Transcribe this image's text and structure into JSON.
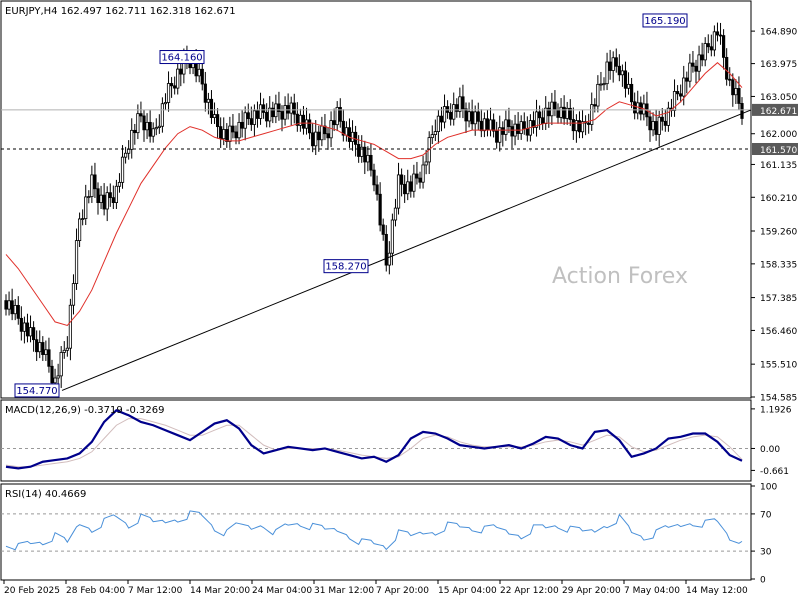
{
  "chart_data": [
    {
      "type": "candlestick",
      "title": "EURJPY,H4  162.497 162.711 162.318 162.671",
      "watermark": "Action Forex",
      "ylim": [
        154.585,
        165.71
      ],
      "y_ticks": [
        "164.890",
        "163.975",
        "163.050",
        "162.000",
        "161.135",
        "160.210",
        "159.260",
        "158.335",
        "157.385",
        "156.460",
        "155.510",
        "154.585"
      ],
      "y_tick_values": [
        164.89,
        163.975,
        163.05,
        162.0,
        161.135,
        160.21,
        159.26,
        158.335,
        157.385,
        156.46,
        155.51,
        154.585
      ],
      "current_price": {
        "label": "162.671",
        "value": 162.671
      },
      "support_line": {
        "label": "161.570",
        "value": 161.57
      },
      "trendline": {
        "from_x": "20 Feb 2025",
        "from_y": 154.77,
        "to_x": "15 May 2025",
        "to_y": 162.55
      },
      "annotations": [
        {
          "label": "154.770",
          "x": "26 Feb 2025",
          "value": 154.77
        },
        {
          "label": "164.160",
          "x": "17 Mar 2025",
          "value": 164.16
        },
        {
          "label": "158.270",
          "x": "4 Apr 2025",
          "value": 158.27
        },
        {
          "label": "165.190",
          "x": "12 May 2025",
          "value": 165.19
        }
      ],
      "series": [
        {
          "name": "Close (H4, approx.)",
          "x": [
            "20 Feb 2025",
            "21 Feb 2025",
            "24 Feb 2025",
            "25 Feb 2025",
            "26 Feb 2025",
            "27 Feb 2025",
            "28 Feb 2025",
            "3 Mar 2025",
            "4 Mar 2025",
            "5 Mar 2025",
            "6 Mar 2025",
            "7 Mar 2025",
            "10 Mar 2025",
            "11 Mar 2025",
            "12 Mar 2025",
            "13 Mar 2025",
            "14 Mar 2025",
            "17 Mar 2025",
            "18 Mar 2025",
            "19 Mar 2025",
            "20 Mar 2025",
            "21 Mar 2025",
            "24 Mar 2025",
            "25 Mar 2025",
            "26 Mar 2025",
            "27 Mar 2025",
            "28 Mar 2025",
            "31 Mar 2025",
            "1 Apr 2025",
            "2 Apr 2025",
            "3 Apr 2025",
            "4 Apr 2025",
            "7 Apr 2025",
            "8 Apr 2025",
            "9 Apr 2025",
            "10 Apr 2025",
            "11 Apr 2025",
            "14 Apr 2025",
            "15 Apr 2025",
            "16 Apr 2025",
            "17 Apr 2025",
            "18 Apr 2025",
            "21 Apr 2025",
            "22 Apr 2025",
            "23 Apr 2025",
            "24 Apr 2025",
            "25 Apr 2025",
            "28 Apr 2025",
            "29 Apr 2025",
            "30 Apr 2025",
            "1 May 2025",
            "2 May 2025",
            "5 May 2025",
            "6 May 2025",
            "7 May 2025",
            "8 May 2025",
            "9 May 2025",
            "12 May 2025",
            "13 May 2025",
            "14 May 2025",
            "15 May 2025"
          ],
          "values": [
            157.3,
            156.8,
            156.3,
            155.9,
            155.0,
            156.2,
            159.6,
            160.6,
            160.0,
            160.4,
            161.8,
            162.5,
            161.9,
            163.0,
            163.7,
            164.1,
            163.4,
            162.3,
            161.9,
            162.2,
            162.5,
            162.6,
            162.6,
            162.7,
            162.4,
            161.9,
            162.0,
            162.5,
            161.9,
            161.5,
            160.8,
            158.3,
            160.6,
            160.5,
            161.0,
            162.3,
            162.6,
            162.8,
            162.4,
            162.3,
            162.0,
            162.2,
            162.1,
            162.3,
            162.6,
            162.7,
            162.4,
            162.1,
            162.9,
            163.9,
            163.9,
            162.9,
            162.6,
            162.1,
            162.6,
            163.3,
            163.9,
            164.3,
            164.9,
            163.4,
            162.67
          ]
        },
        {
          "name": "MA",
          "values": [
            158.6,
            158.2,
            157.7,
            157.2,
            156.7,
            156.6,
            157.0,
            157.6,
            158.4,
            159.2,
            159.9,
            160.6,
            161.1,
            161.6,
            162.0,
            162.2,
            162.1,
            161.9,
            161.8,
            161.8,
            161.9,
            162.0,
            162.1,
            162.2,
            162.3,
            162.3,
            162.2,
            162.1,
            161.9,
            161.8,
            161.7,
            161.5,
            161.3,
            161.3,
            161.4,
            161.7,
            161.9,
            162.0,
            162.1,
            162.1,
            162.1,
            162.1,
            162.1,
            162.2,
            162.3,
            162.3,
            162.3,
            162.3,
            162.4,
            162.7,
            162.9,
            162.8,
            162.7,
            162.5,
            162.6,
            162.9,
            163.3,
            163.7,
            164.0,
            163.7,
            163.3
          ]
        }
      ]
    },
    {
      "type": "line",
      "title": "MACD(12,26,9) -0.3719 -0.3269",
      "ylim": [
        -0.95,
        1.4
      ],
      "y_ticks": [
        "1.1926",
        "0.00",
        "-0.661"
      ],
      "y_tick_values": [
        1.1926,
        0.0,
        -0.661
      ],
      "series": [
        {
          "name": "MACD",
          "values": [
            -0.55,
            -0.6,
            -0.55,
            -0.4,
            -0.35,
            -0.3,
            -0.15,
            0.2,
            0.8,
            1.15,
            1.0,
            0.8,
            0.7,
            0.55,
            0.4,
            0.25,
            0.5,
            0.75,
            0.85,
            0.6,
            0.1,
            -0.15,
            -0.05,
            0.05,
            0.0,
            -0.05,
            0.0,
            -0.1,
            -0.2,
            -0.3,
            -0.25,
            -0.4,
            -0.2,
            0.3,
            0.5,
            0.45,
            0.3,
            0.1,
            0.05,
            0.0,
            0.05,
            0.1,
            0.0,
            0.15,
            0.35,
            0.3,
            0.1,
            0.0,
            0.5,
            0.55,
            0.25,
            -0.25,
            -0.15,
            0.0,
            0.3,
            0.35,
            0.45,
            0.45,
            0.2,
            -0.2,
            -0.37
          ]
        },
        {
          "name": "Signal",
          "values": [
            -0.5,
            -0.55,
            -0.55,
            -0.5,
            -0.45,
            -0.4,
            -0.3,
            -0.1,
            0.3,
            0.7,
            0.9,
            0.9,
            0.8,
            0.7,
            0.55,
            0.4,
            0.4,
            0.55,
            0.7,
            0.7,
            0.4,
            0.1,
            -0.05,
            0.0,
            0.0,
            0.0,
            0.0,
            -0.05,
            -0.12,
            -0.2,
            -0.25,
            -0.3,
            -0.25,
            0.0,
            0.3,
            0.4,
            0.35,
            0.2,
            0.1,
            0.05,
            0.05,
            0.05,
            0.05,
            0.1,
            0.2,
            0.25,
            0.2,
            0.1,
            0.25,
            0.4,
            0.35,
            0.05,
            -0.1,
            -0.05,
            0.1,
            0.25,
            0.35,
            0.4,
            0.35,
            0.05,
            -0.33
          ]
        }
      ]
    },
    {
      "type": "line",
      "title": "RSI(14) 40.4669",
      "ylim": [
        0,
        100
      ],
      "y_ticks": [
        "100",
        "70",
        "30",
        "0"
      ],
      "y_tick_values": [
        100,
        70,
        30,
        0
      ],
      "series": [
        {
          "name": "RSI",
          "values": [
            40,
            35,
            38,
            40,
            45,
            38,
            60,
            55,
            62,
            67,
            58,
            65,
            60,
            62,
            66,
            70,
            68,
            55,
            48,
            58,
            55,
            60,
            50,
            58,
            60,
            55,
            52,
            53,
            48,
            40,
            38,
            35,
            48,
            45,
            50,
            52,
            58,
            56,
            55,
            52,
            54,
            50,
            48,
            55,
            55,
            58,
            52,
            50,
            52,
            60,
            66,
            50,
            45,
            48,
            54,
            58,
            62,
            60,
            62,
            45,
            40.47
          ]
        }
      ]
    }
  ],
  "x_axis": {
    "labels": [
      "20 Feb 2025",
      "28 Feb 04:00",
      "7 Mar 12:00",
      "14 Mar 20:00",
      "24 Mar 04:00",
      "31 Mar 12:00",
      "7 Apr 20:00",
      "15 Apr 04:00",
      "22 Apr 12:00",
      "29 Apr 20:00",
      "7 May 04:00",
      "14 May 12:00"
    ]
  },
  "colors": {
    "candles": "#000000",
    "ma": "#e0302a",
    "macd": "#00008b",
    "signal": "#d2bdbd",
    "rsi": "#4a90d9",
    "label_box": "#00008b",
    "price_box": "#5a5a5a",
    "watermark": "#c0c0c0",
    "trendline": "#000000"
  }
}
